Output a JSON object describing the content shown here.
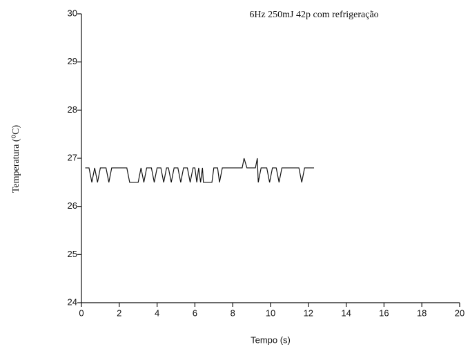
{
  "chart_data": {
    "type": "line",
    "title": "6Hz 250mJ 42p com refrigeração",
    "x_label": "Tempo (s)",
    "y_label": "Temperatura (⁰C)",
    "x": [
      0.2,
      0.4,
      0.55,
      0.7,
      0.85,
      1.0,
      1.3,
      1.45,
      1.6,
      2.4,
      2.55,
      3.0,
      3.15,
      3.3,
      3.45,
      3.7,
      3.85,
      4.0,
      4.2,
      4.35,
      4.5,
      4.6,
      4.75,
      4.9,
      5.1,
      5.25,
      5.4,
      5.6,
      5.75,
      5.9,
      6.0,
      6.1,
      6.2,
      6.3,
      6.4,
      6.45,
      6.9,
      7.0,
      7.2,
      7.3,
      7.45,
      8.5,
      8.6,
      8.75,
      9.2,
      9.3,
      9.35,
      9.5,
      9.8,
      9.95,
      10.1,
      10.3,
      10.45,
      10.6,
      11.5,
      11.65,
      11.8,
      12.3
    ],
    "series": [
      {
        "color": "#111111",
        "values": [
          26.8,
          26.8,
          26.5,
          26.8,
          26.5,
          26.8,
          26.8,
          26.5,
          26.8,
          26.8,
          26.5,
          26.5,
          26.8,
          26.5,
          26.8,
          26.8,
          26.5,
          26.8,
          26.8,
          26.5,
          26.8,
          26.8,
          26.5,
          26.8,
          26.8,
          26.5,
          26.8,
          26.8,
          26.5,
          26.8,
          26.8,
          26.5,
          26.8,
          26.5,
          26.8,
          26.5,
          26.5,
          26.8,
          26.8,
          26.5,
          26.8,
          26.8,
          27.0,
          26.8,
          26.8,
          27.0,
          26.5,
          26.8,
          26.8,
          26.5,
          26.8,
          26.8,
          26.5,
          26.8,
          26.8,
          26.5,
          26.8,
          26.8
        ]
      }
    ],
    "xlim": [
      0,
      20
    ],
    "xticks": [
      0,
      2,
      4,
      6,
      8,
      10,
      12,
      14,
      16,
      18,
      20
    ],
    "ylim": [
      24,
      30
    ],
    "yticks": [
      24,
      25,
      26,
      27,
      28,
      29,
      30
    ],
    "grid": false
  }
}
